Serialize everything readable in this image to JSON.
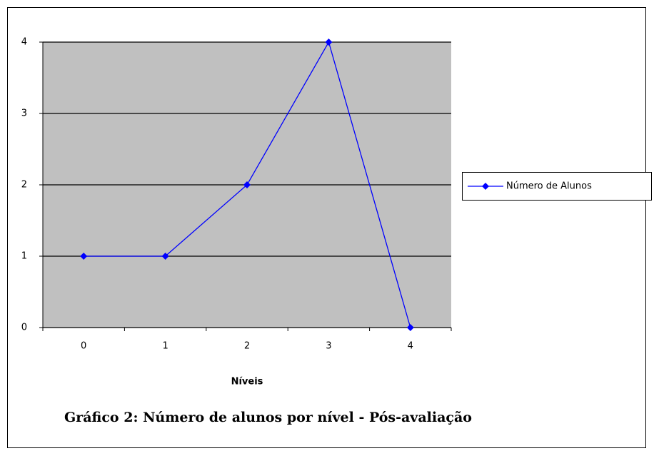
{
  "chart_data": {
    "type": "line",
    "caption": "Gráfico 2: Número de alunos por nível - Pós-avaliação",
    "x_label": "Níveis",
    "categories": [
      "0",
      "1",
      "2",
      "3",
      "4"
    ],
    "series": [
      {
        "name": "Número de Alunos",
        "color": "#0000ff",
        "values": [
          1,
          1,
          2,
          4,
          0
        ]
      }
    ],
    "ylim": [
      0,
      4
    ],
    "yticks": [
      0,
      1,
      2,
      3,
      4
    ],
    "grid": true,
    "legend": "right",
    "plot_background": "#c0c0c0"
  }
}
